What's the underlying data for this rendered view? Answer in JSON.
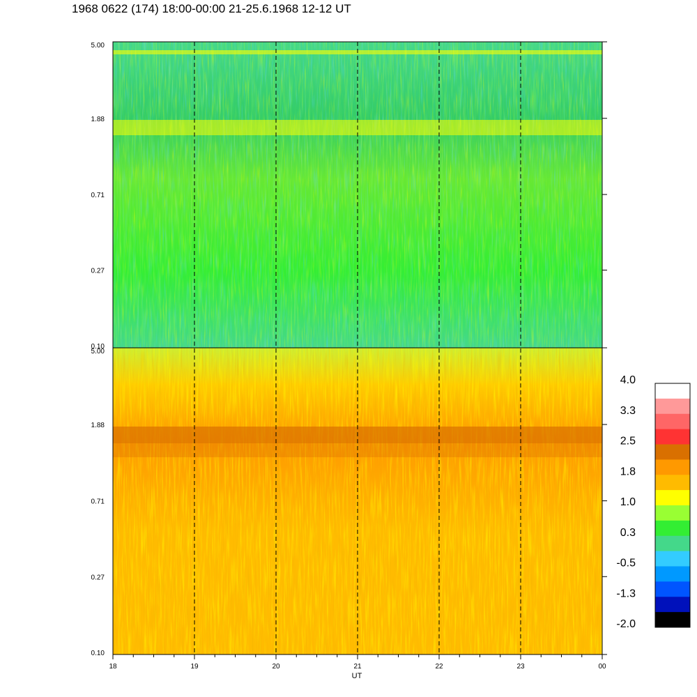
{
  "title": "1968 0622 (174) 18:00-00:00 21-25.6.1968  12-12 UT",
  "chart_data": {
    "type": "heatmap",
    "xlabel": "UT",
    "x_ticks": [
      "18",
      "19",
      "20",
      "21",
      "22",
      "23",
      "00"
    ],
    "y_ticks": [
      "0.10",
      "0.27",
      "0.71",
      "1.88",
      "5.00"
    ],
    "ylim": [
      0.1,
      5.0
    ],
    "y_scale": "log",
    "vertical_dashed_lines_at": [
      "19",
      "20",
      "21",
      "22",
      "23"
    ],
    "panels": [
      {
        "dominant_levels": [
          "green",
          "cyan-green",
          "yellow"
        ],
        "band_near": "1.88"
      },
      {
        "dominant_levels": [
          "orange",
          "yellow-orange",
          "yellow"
        ],
        "band_near": "1.88"
      }
    ],
    "colorbar": {
      "labels": [
        "4.0",
        "3.3",
        "2.5",
        "1.8",
        "1.0",
        "0.3",
        "-0.5",
        "-1.3",
        "-2.0"
      ],
      "colors": [
        "#ffffff",
        "#ff9999",
        "#ff6666",
        "#ff3333",
        "#d97000",
        "#ff9900",
        "#ffbb00",
        "#ffff00",
        "#99ff33",
        "#33ee33",
        "#44d88a",
        "#33ccff",
        "#0099ff",
        "#0055ff",
        "#0011bb",
        "#000000"
      ]
    }
  }
}
